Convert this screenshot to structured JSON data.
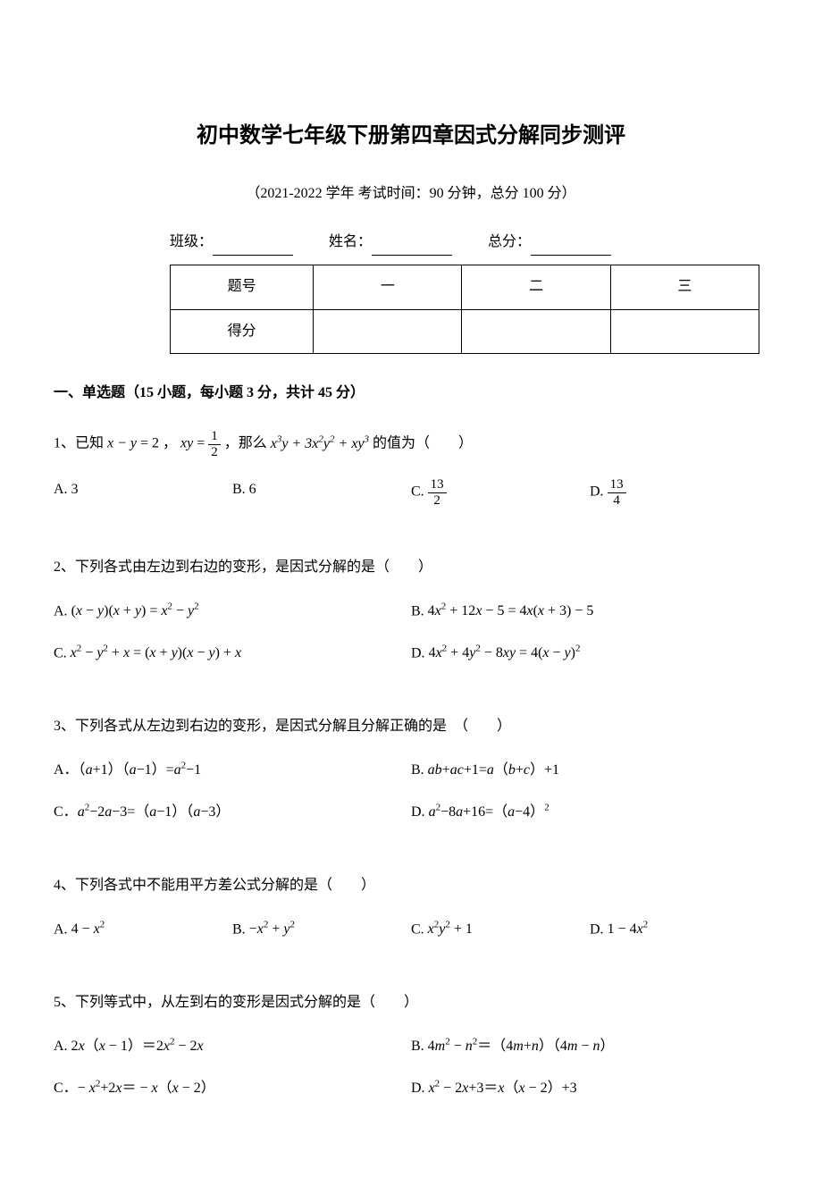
{
  "title": "初中数学七年级下册第四章因式分解同步测评",
  "subtitle": "（2021-2022 学年 考试时间：90 分钟，总分 100 分）",
  "info": {
    "class_label": "班级：",
    "name_label": "姓名：",
    "total_label": "总分："
  },
  "score_table": {
    "row1": {
      "label": "题号",
      "c1": "一",
      "c2": "二",
      "c3": "三"
    },
    "row2": {
      "label": "得分"
    }
  },
  "section1_header": "一、单选题（15 小题，每小题 3 分，共计 45 分）",
  "q1": {
    "prefix": "1、已知",
    "cond1_lhs": "x − y",
    "cond1_eq": " = 2 ，",
    "cond2_lhs": "xy",
    "cond2_eq": " = ",
    "frac_num": "1",
    "frac_den": "2",
    "mid": "，那么",
    "expr": "x³y + 3x²y² + xy³",
    "suffix": "的值为（　　）",
    "optA": "A. 3",
    "optB": "B. 6",
    "optC_prefix": "C. ",
    "optC_num": "13",
    "optC_den": "2",
    "optD_prefix": "D. ",
    "optD_num": "13",
    "optD_den": "4"
  },
  "q2": {
    "stem": "2、下列各式由左边到右边的变形，是因式分解的是（　　）",
    "optA_prefix": "A. ",
    "optA": "(x − y)(x + y) = x² − y²",
    "optB_prefix": "B. ",
    "optB": "4x² + 12x − 5 = 4x(x + 3) − 5",
    "optC_prefix": "C. ",
    "optC": "x² − y² + x = (x + y)(x − y) + x",
    "optD_prefix": "D. ",
    "optD": "4x² + 4y² − 8xy = 4(x − y)²"
  },
  "q3": {
    "stem": "3、下列各式从左边到右边的变形，是因式分解且分解正确的是　（　　）",
    "optA": "A．（a+1）（a−1）=a²−1",
    "optB": "B. ab+ac+1=a（b+c）+1",
    "optC": "C．a²−2a−3=（a−1）（a−3）",
    "optD": "D. a²−8a+16=（a−4）²"
  },
  "q4": {
    "stem": "4、下列各式中不能用平方差公式分解的是（　　）",
    "optA_prefix": "A. ",
    "optA": "4 − x²",
    "optB_prefix": "B. ",
    "optB": "−x² + y²",
    "optC_prefix": "C. ",
    "optC": "x²y² + 1",
    "optD_prefix": "D. ",
    "optD": "1 − 4x²"
  },
  "q5": {
    "stem": "5、下列等式中，从左到右的变形是因式分解的是（　　）",
    "optA": "A. 2x（x − 1）＝2x² − 2x",
    "optB": "B. 4m² − n²＝（4m+n）（4m − n）",
    "optC": "C．− x²+2x＝ − x（x − 2）",
    "optD": "D. x² − 2x+3＝x（x − 2）+3"
  }
}
